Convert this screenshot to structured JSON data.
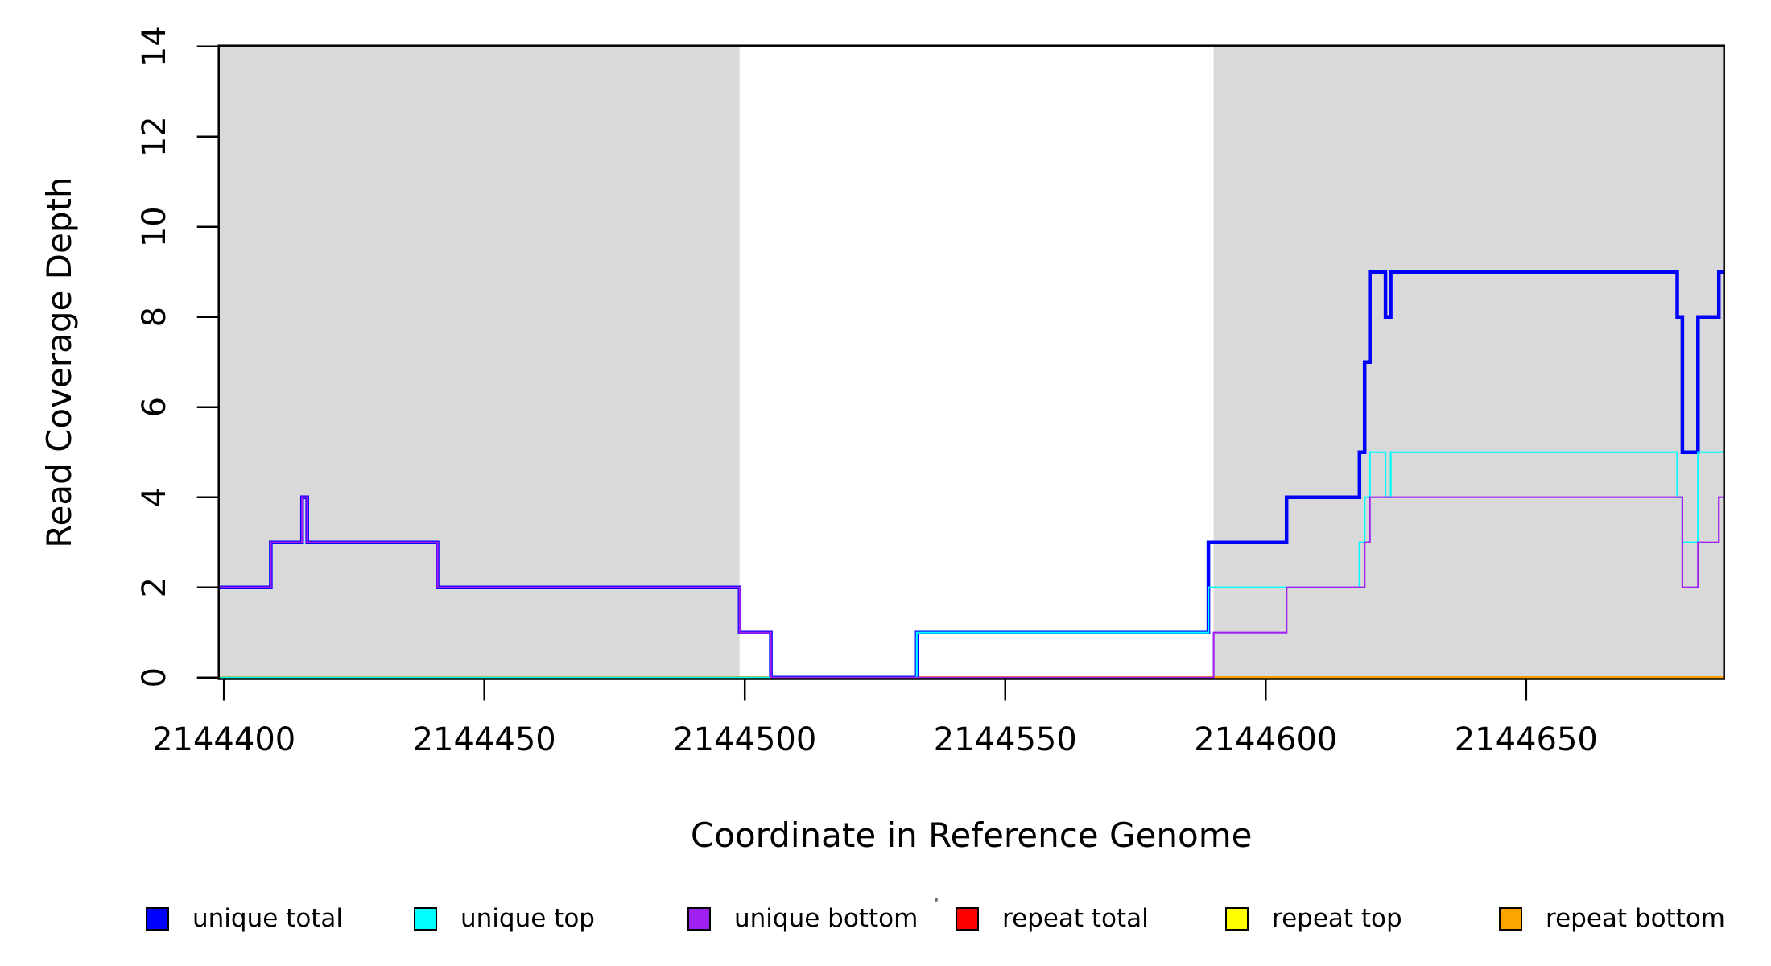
{
  "figure": {
    "background_color": "#ffffff",
    "plot_bg_shade_color": "#d9d9d9",
    "box_color": "#000000"
  },
  "chart_data": {
    "type": "line",
    "subtype": "step-after-coverage-plot",
    "title": "",
    "xlabel": "Coordinate in Reference Genome",
    "ylabel": "Read Coverage Depth",
    "xlim": [
      2144399,
      2144688
    ],
    "ylim": [
      0,
      14
    ],
    "x_ticks": [
      2144400,
      2144450,
      2144500,
      2144550,
      2144600,
      2144650
    ],
    "y_ticks": [
      0,
      2,
      4,
      6,
      8,
      10,
      12,
      14
    ],
    "grid": false,
    "legend_position": "bottom",
    "shaded_regions": [
      {
        "name": "left-repeat-flank",
        "x0": 2144399,
        "x1": 2144499
      },
      {
        "name": "right-repeat-flank",
        "x0": 2144590,
        "x1": 2144688
      }
    ],
    "series": [
      {
        "name": "repeat total",
        "color": "#FF0000",
        "line_width": 3.5,
        "points": [
          [
            2144399,
            0
          ],
          [
            2144688,
            0
          ]
        ]
      },
      {
        "name": "repeat top",
        "color": "#FFFF00",
        "line_width": 3.0,
        "points": [
          [
            2144399,
            0
          ],
          [
            2144688,
            0
          ]
        ]
      },
      {
        "name": "repeat bottom",
        "color": "#FFA500",
        "line_width": 2.8,
        "points": [
          [
            2144399,
            0
          ],
          [
            2144688,
            0
          ]
        ]
      },
      {
        "name": "unique total",
        "color": "#0000FF",
        "line_width": 4.5,
        "points": [
          [
            2144399,
            2
          ],
          [
            2144409,
            3
          ],
          [
            2144415,
            4
          ],
          [
            2144416,
            3
          ],
          [
            2144441,
            2
          ],
          [
            2144499,
            1
          ],
          [
            2144505,
            0
          ],
          [
            2144533,
            1
          ],
          [
            2144589,
            3
          ],
          [
            2144604,
            4
          ],
          [
            2144618,
            5
          ],
          [
            2144619,
            7
          ],
          [
            2144620,
            9
          ],
          [
            2144623,
            8
          ],
          [
            2144624,
            9
          ],
          [
            2144679,
            8
          ],
          [
            2144680,
            5
          ],
          [
            2144683,
            8
          ],
          [
            2144687,
            9
          ],
          [
            2144688,
            9
          ]
        ]
      },
      {
        "name": "unique top",
        "color": "#00FFFF",
        "line_width": 2.2,
        "points": [
          [
            2144399,
            0
          ],
          [
            2144533,
            1
          ],
          [
            2144589,
            2
          ],
          [
            2144618,
            3
          ],
          [
            2144619,
            4
          ],
          [
            2144620,
            5
          ],
          [
            2144623,
            4
          ],
          [
            2144624,
            5
          ],
          [
            2144679,
            4
          ],
          [
            2144680,
            3
          ],
          [
            2144683,
            5
          ],
          [
            2144688,
            5
          ]
        ]
      },
      {
        "name": "unique bottom",
        "color": "#A020F0",
        "line_width": 2.2,
        "points": [
          [
            2144399,
            2
          ],
          [
            2144409,
            3
          ],
          [
            2144415,
            4
          ],
          [
            2144416,
            3
          ],
          [
            2144441,
            2
          ],
          [
            2144499,
            1
          ],
          [
            2144505,
            0
          ],
          [
            2144590,
            1
          ],
          [
            2144604,
            2
          ],
          [
            2144619,
            3
          ],
          [
            2144620,
            4
          ],
          [
            2144680,
            2
          ],
          [
            2144683,
            3
          ],
          [
            2144687,
            4
          ],
          [
            2144688,
            4
          ]
        ]
      }
    ],
    "legend": [
      {
        "label": "unique total",
        "color": "#0000FF"
      },
      {
        "label": "unique top",
        "color": "#00FFFF"
      },
      {
        "label": "unique bottom",
        "color": "#A020F0"
      },
      {
        "label": "repeat total",
        "color": "#FF0000"
      },
      {
        "label": "repeat top",
        "color": "#FFFF00"
      },
      {
        "label": "repeat bottom",
        "color": "#FFA500"
      }
    ]
  }
}
